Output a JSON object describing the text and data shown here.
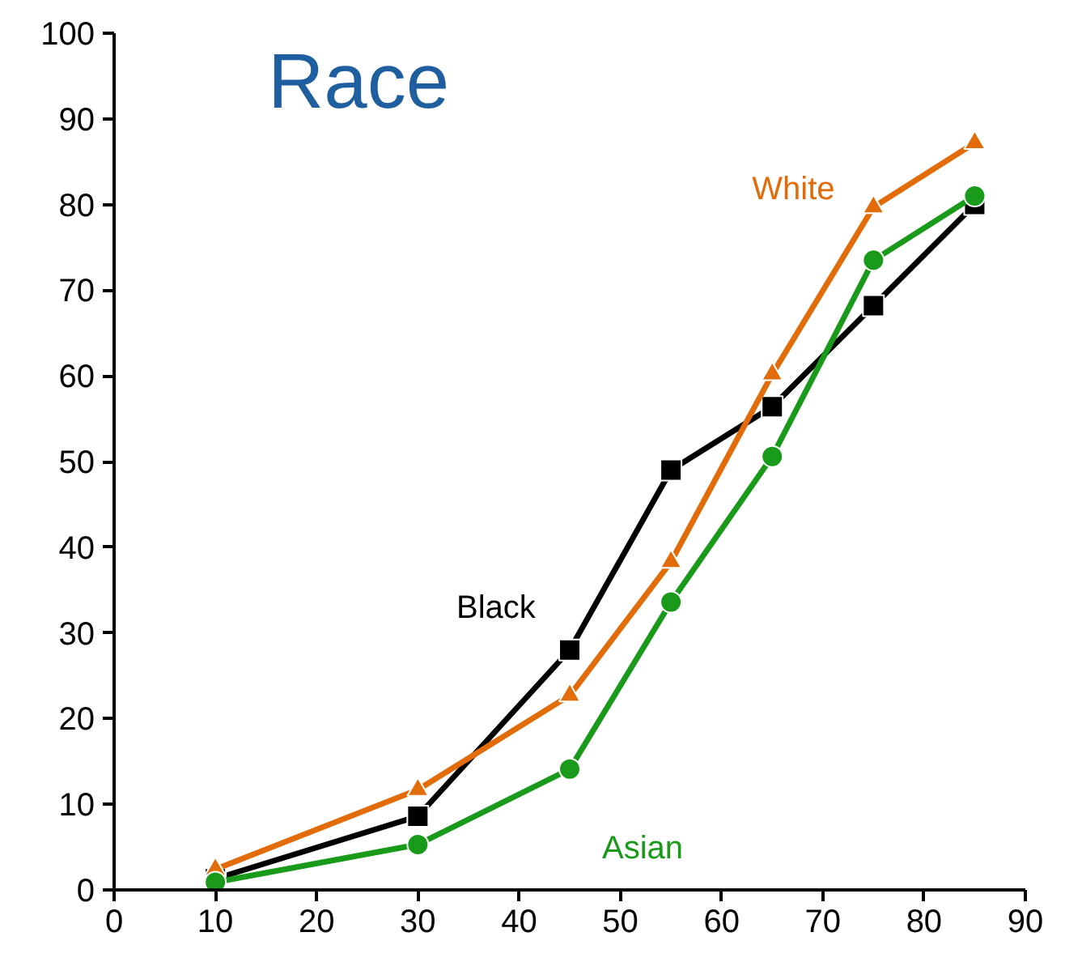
{
  "chart_data": {
    "type": "line",
    "title": "Race",
    "x": [
      10,
      30,
      45,
      55,
      65,
      75,
      85
    ],
    "series": [
      {
        "name": "Black",
        "color": "#000000",
        "marker": "square",
        "values": [
          1.3,
          8.6,
          28,
          49,
          56.4,
          68.2,
          80
        ]
      },
      {
        "name": "White",
        "color": "#e36c0a",
        "marker": "triangle",
        "values": [
          2.4,
          11.7,
          22.7,
          38.3,
          60.2,
          79.7,
          87.2
        ]
      },
      {
        "name": "Asian",
        "color": "#1a9a1a",
        "marker": "circle",
        "values": [
          0.9,
          5.3,
          14.1,
          33.6,
          50.6,
          73.5,
          81
        ]
      }
    ],
    "xlim": [
      0,
      90
    ],
    "xticks": [
      0,
      10,
      20,
      30,
      40,
      50,
      60,
      70,
      80,
      90
    ],
    "ylim": [
      0,
      100
    ],
    "yticks": [
      0,
      10,
      20,
      30,
      40,
      50,
      60,
      70,
      80,
      90,
      100
    ],
    "grid": false,
    "line_style": "solid"
  }
}
